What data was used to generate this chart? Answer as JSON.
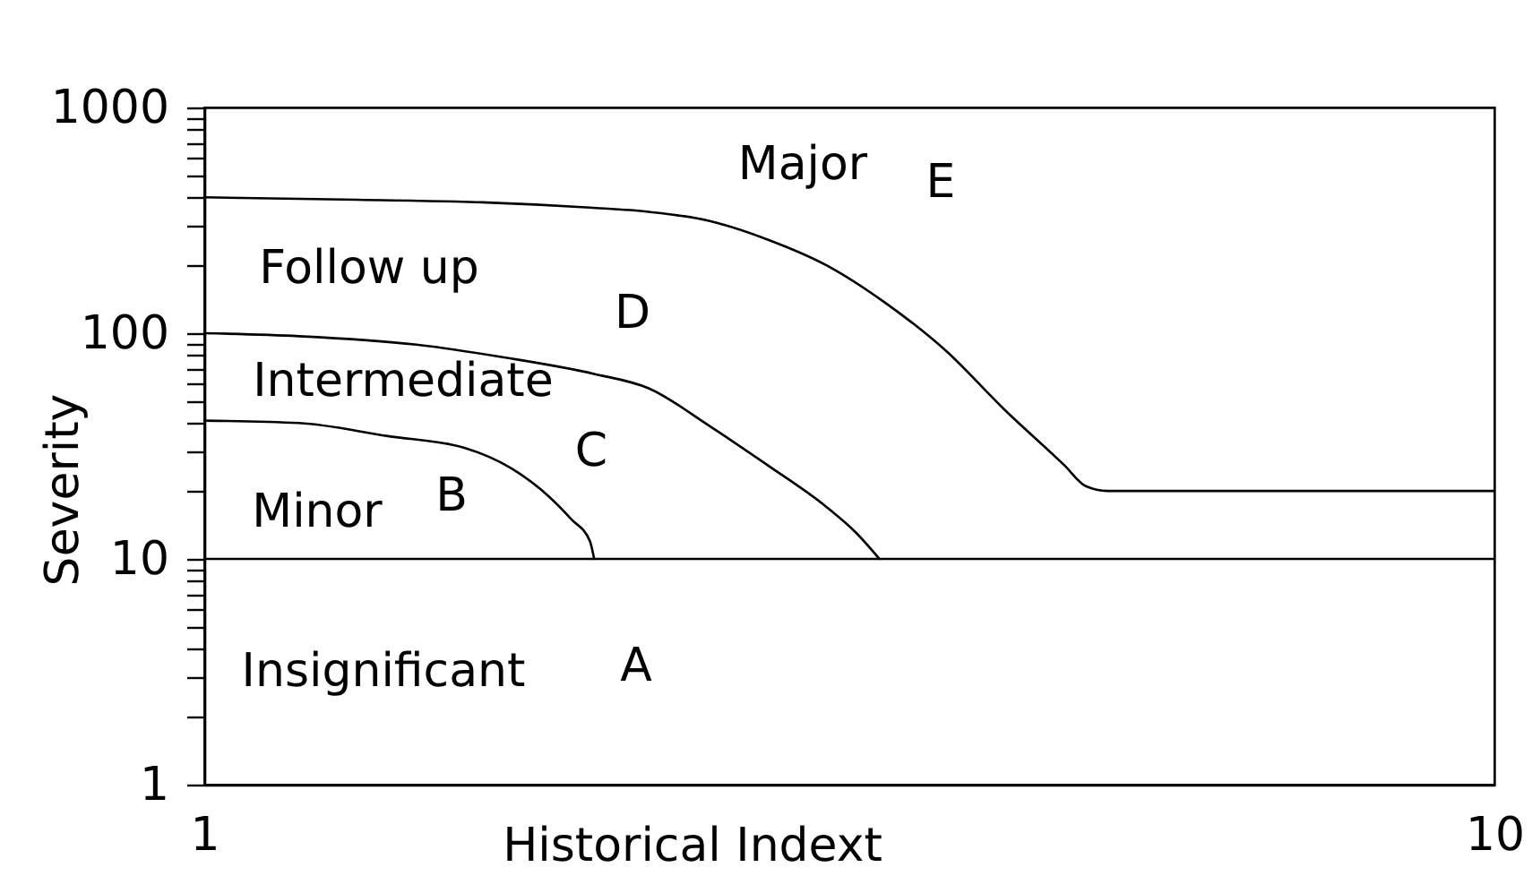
{
  "chart_data": {
    "type": "line",
    "xlabel": "Historical Indext",
    "ylabel": "Severity",
    "log": "y",
    "grid": false,
    "xlim": [
      1,
      10
    ],
    "xticks": [
      1,
      10
    ],
    "ylim": [
      1,
      1000
    ],
    "yticks": [
      1,
      {
        "value": 2,
        "label": null
      },
      {
        "value": 3,
        "label": null
      },
      {
        "value": 4,
        "label": null
      },
      {
        "value": 5,
        "label": null
      },
      {
        "value": 6,
        "label": null
      },
      {
        "value": 7,
        "label": null
      },
      {
        "value": 8,
        "label": null
      },
      {
        "value": 9,
        "label": null
      },
      10,
      {
        "value": 20,
        "label": null
      },
      {
        "value": 30,
        "label": null
      },
      {
        "value": 40,
        "label": null
      },
      {
        "value": 50,
        "label": null
      },
      {
        "value": 60,
        "label": null
      },
      {
        "value": 70,
        "label": null
      },
      {
        "value": 80,
        "label": null
      },
      {
        "value": 90,
        "label": null
      },
      100,
      {
        "value": 200,
        "label": null
      },
      {
        "value": 300,
        "label": null
      },
      {
        "value": 400,
        "label": null
      },
      {
        "value": 500,
        "label": null
      },
      {
        "value": 600,
        "label": null
      },
      {
        "value": 700,
        "label": null
      },
      {
        "value": 800,
        "label": null
      },
      {
        "value": 900,
        "label": null
      },
      1000
    ],
    "series": [
      {
        "color": "#000000",
        "x": [
          1,
          2.07,
          2.94,
          3.69,
          4.1,
          4.52,
          4.93,
          5.34,
          5.76,
          6.17,
          6.58,
          7.0,
          7.15,
          7.3,
          10
        ],
        "values": [
          400,
          390,
          380,
          360,
          345,
          315,
          260,
          200,
          135,
          84,
          46,
          26,
          21,
          20,
          20
        ]
      },
      {
        "color": "#000000",
        "x": [
          1,
          1.66,
          2.48,
          3.1,
          3.72,
          4.1,
          4.52,
          4.93,
          5.34,
          5.55,
          5.71
        ],
        "values": [
          100,
          97,
          89,
          78,
          66,
          57,
          39,
          26,
          17,
          13,
          10
        ]
      },
      {
        "color": "#000000",
        "x": [
          1,
          1.66,
          2.28,
          2.82,
          3.15,
          3.4,
          3.56,
          3.69,
          3.72
        ],
        "values": [
          41,
          40,
          35,
          31,
          25,
          19,
          15,
          12,
          10
        ]
      }
    ],
    "ref_lines": [
      {
        "axis": "y",
        "value": 10,
        "color": "#000000"
      }
    ],
    "annotations": [
      "Major",
      "E",
      "Follow up",
      "D",
      "Intermediate",
      "C",
      "Minor",
      "B",
      "Insignificant",
      "A"
    ]
  }
}
